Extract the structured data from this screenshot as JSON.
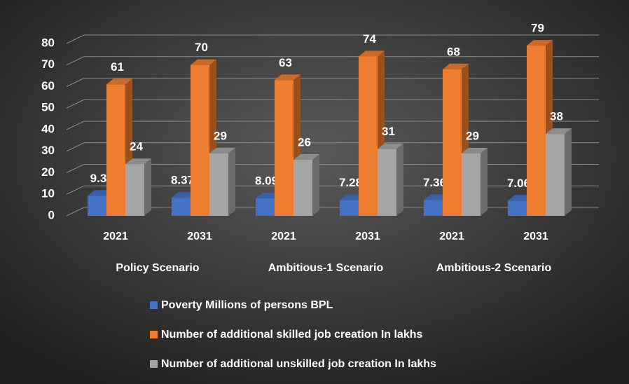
{
  "chart_data": {
    "type": "bar3d",
    "categories": [
      "2021",
      "2031",
      "2021",
      "2031",
      "2021",
      "2031"
    ],
    "groups": [
      "Policy Scenario",
      "Ambitious-1 Scenario",
      "Ambitious-2 Scenario"
    ],
    "series": [
      {
        "name": "Poverty Millions of persons BPL",
        "color": "#4472c4",
        "values": [
          9.3,
          8.37,
          8.09,
          7.28,
          7.36,
          7.06
        ]
      },
      {
        "name": "Number of additional skilled job creation In lakhs",
        "color": "#ed7d31",
        "values": [
          61,
          70,
          63,
          74,
          68,
          79
        ]
      },
      {
        "name": "Number of additional unskilled job creation In lakhs",
        "color": "#a5a5a5",
        "values": [
          24,
          29,
          26,
          31,
          29,
          38
        ]
      }
    ],
    "ylim": [
      0,
      80
    ],
    "yticks": [
      0,
      10,
      20,
      30,
      40,
      50,
      60,
      70,
      80
    ],
    "grid": true,
    "legend": "bottom"
  }
}
